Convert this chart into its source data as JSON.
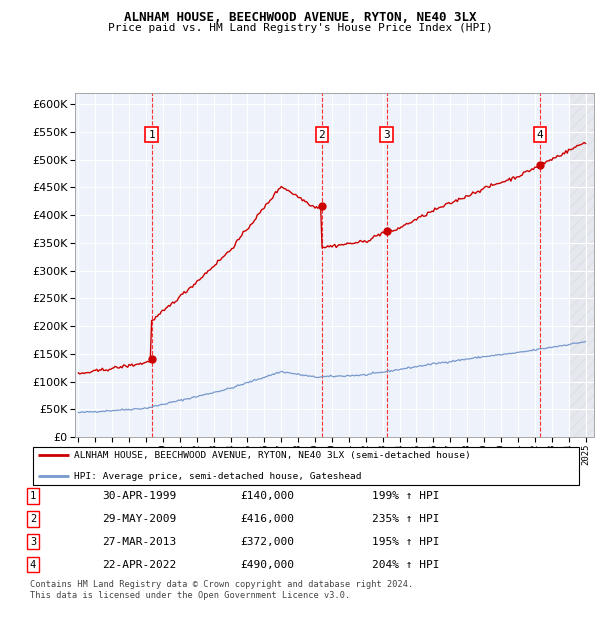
{
  "title": "ALNHAM HOUSE, BEECHWOOD AVENUE, RYTON, NE40 3LX",
  "subtitle": "Price paid vs. HM Land Registry's House Price Index (HPI)",
  "legend_line1": "ALNHAM HOUSE, BEECHWOOD AVENUE, RYTON, NE40 3LX (semi-detached house)",
  "legend_line2": "HPI: Average price, semi-detached house, Gateshead",
  "footer1": "Contains HM Land Registry data © Crown copyright and database right 2024.",
  "footer2": "This data is licensed under the Open Government Licence v3.0.",
  "sales": [
    {
      "num": 1,
      "date": "30-APR-1999",
      "price": 140000,
      "hpi": "199%",
      "year": 1999.33
    },
    {
      "num": 2,
      "date": "29-MAY-2009",
      "price": 416000,
      "hpi": "235%",
      "year": 2009.41
    },
    {
      "num": 3,
      "date": "27-MAR-2013",
      "price": 372000,
      "hpi": "195%",
      "year": 2013.23
    },
    {
      "num": 4,
      "date": "22-APR-2022",
      "price": 490000,
      "hpi": "204%",
      "year": 2022.31
    }
  ],
  "ylim": [
    0,
    620000
  ],
  "yticks": [
    0,
    50000,
    100000,
    150000,
    200000,
    250000,
    300000,
    350000,
    400000,
    450000,
    500000,
    550000,
    600000
  ],
  "xlim_start": 1994.8,
  "xlim_end": 2025.5,
  "plot_bg": "#eef2fa",
  "grid_color": "#ffffff",
  "hpi_line_color": "#7799cc",
  "price_line_color": "#cc0000",
  "sale_marker_color": "#cc0000",
  "hpi_start_year": 1995,
  "hpi_end_year": 2025,
  "hpi_knots_x": [
    1995,
    1999,
    2002,
    2004,
    2007,
    2009,
    2012,
    2014,
    2016,
    2019,
    2021,
    2023,
    2025
  ],
  "hpi_knots_y": [
    44000,
    52000,
    73000,
    88000,
    118000,
    108000,
    112000,
    122000,
    132000,
    145000,
    152000,
    162000,
    172000
  ]
}
